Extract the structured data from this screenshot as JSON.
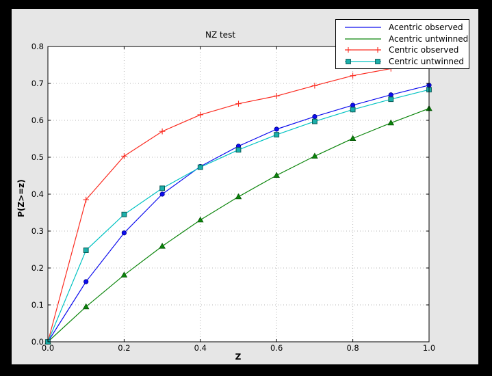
{
  "window": {
    "outer_background": "#000000",
    "figure_background": "#e6e6e6",
    "plot_background": "#ffffff",
    "grid_color": "#b5b5b5",
    "axes_color": "#000000"
  },
  "chart_data": {
    "type": "line",
    "title": "NZ test",
    "xlabel": "Z",
    "ylabel": "P(Z>=z)",
    "xlim": [
      0.0,
      1.0
    ],
    "ylim": [
      0.0,
      0.8
    ],
    "xticks": [
      0.0,
      0.2,
      0.4,
      0.6,
      0.8,
      1.0
    ],
    "yticks": [
      0.0,
      0.1,
      0.2,
      0.3,
      0.4,
      0.5,
      0.6,
      0.7,
      0.8
    ],
    "grid": true,
    "grid_style": "dotted",
    "legend_position": "upper right",
    "x": [
      0.0,
      0.1,
      0.2,
      0.3,
      0.4,
      0.5,
      0.6,
      0.7,
      0.8,
      0.9,
      1.0
    ],
    "series": [
      {
        "name": "Acentric observed",
        "color": "#0d0dee",
        "marker": "circle",
        "marker_face": "#0d0dee",
        "marker_edge": "#00008b",
        "legend_markers": false,
        "values": [
          0.0,
          0.163,
          0.295,
          0.4,
          0.475,
          0.53,
          0.576,
          0.61,
          0.641,
          0.669,
          0.695
        ]
      },
      {
        "name": "Acentric untwinned",
        "color": "#0b850b",
        "marker": "triangle",
        "marker_face": "#0b850b",
        "marker_edge": "#055405",
        "legend_markers": false,
        "values": [
          0.0,
          0.095,
          0.181,
          0.259,
          0.33,
          0.393,
          0.451,
          0.503,
          0.551,
          0.593,
          0.632
        ]
      },
      {
        "name": "Centric observed",
        "color": "#fb2a1f",
        "marker": "plus",
        "marker_face": "#fb2a1f",
        "marker_edge": "#fb2a1f",
        "legend_markers": true,
        "values": [
          0.0,
          0.385,
          0.503,
          0.57,
          0.615,
          0.645,
          0.666,
          0.694,
          0.721,
          0.74,
          0.756
        ]
      },
      {
        "name": "Centric untwinned",
        "color": "#00c2c2",
        "marker": "square",
        "marker_face": "#1ab0ab",
        "marker_edge": "#0a5a55",
        "legend_markers": true,
        "values": [
          0.0,
          0.248,
          0.345,
          0.416,
          0.473,
          0.52,
          0.561,
          0.597,
          0.629,
          0.657,
          0.683
        ]
      }
    ]
  }
}
